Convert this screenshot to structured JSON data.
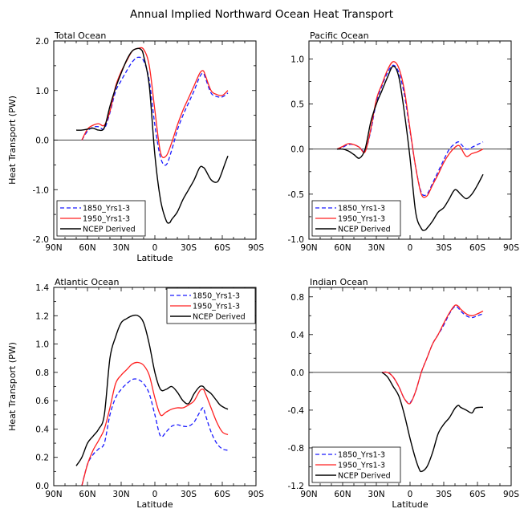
{
  "figure_title": "Annual Implied Northward Ocean Heat Transport",
  "colors": {
    "s1850": "#1a1aff",
    "s1950": "#ff2020",
    "ncep": "#000000"
  },
  "chart_data": [
    {
      "type": "line",
      "title": "Total Ocean",
      "xlabel": "Latitude",
      "ylabel": "Heat Transport (PW)",
      "xlim": [
        90,
        -90
      ],
      "ylim": [
        -2.0,
        2.0
      ],
      "xticks": [
        90,
        60,
        30,
        0,
        -30,
        -60,
        -90
      ],
      "xtick_labels": [
        "90N",
        "60N",
        "30N",
        "0",
        "30S",
        "60S",
        "90S"
      ],
      "yticks": [
        -2.0,
        -1.0,
        0.0,
        1.0,
        2.0
      ],
      "ytick_labels": [
        "-2.0",
        "-1.0",
        "0.0",
        "1.0",
        "2.0"
      ],
      "zero_line": true,
      "legend_position": "bottom-left",
      "series": [
        {
          "name": "1850_Yrs1-3",
          "key": "s1850",
          "x": [
            65,
            60,
            55,
            50,
            45,
            40,
            35,
            30,
            25,
            20,
            15,
            10,
            5,
            0,
            -5,
            -10,
            -15,
            -20,
            -25,
            -30,
            -35,
            -40,
            -43,
            -45,
            -50,
            -55,
            -60,
            -65
          ],
          "y": [
            0.0,
            0.18,
            0.26,
            0.27,
            0.23,
            0.55,
            0.98,
            1.2,
            1.4,
            1.58,
            1.67,
            1.6,
            1.2,
            0.3,
            -0.35,
            -0.5,
            -0.2,
            0.2,
            0.5,
            0.75,
            1.0,
            1.28,
            1.35,
            1.25,
            0.95,
            0.88,
            0.87,
            0.95
          ]
        },
        {
          "name": "1950_Yrs1-3",
          "key": "s1950",
          "x": [
            65,
            60,
            55,
            50,
            45,
            40,
            35,
            30,
            25,
            20,
            15,
            10,
            5,
            0,
            -5,
            -10,
            -15,
            -20,
            -25,
            -30,
            -35,
            -40,
            -43,
            -45,
            -50,
            -55,
            -60,
            -65
          ],
          "y": [
            0.0,
            0.22,
            0.3,
            0.33,
            0.3,
            0.58,
            1.08,
            1.38,
            1.6,
            1.8,
            1.85,
            1.83,
            1.5,
            0.6,
            -0.25,
            -0.32,
            -0.05,
            0.3,
            0.6,
            0.85,
            1.1,
            1.35,
            1.4,
            1.3,
            1.0,
            0.92,
            0.9,
            1.0
          ]
        },
        {
          "name": "NCEP Derived",
          "key": "ncep",
          "x": [
            70,
            65,
            60,
            55,
            50,
            45,
            40,
            35,
            30,
            25,
            20,
            15,
            12,
            10,
            5,
            0,
            -5,
            -10,
            -13,
            -15,
            -20,
            -25,
            -30,
            -35,
            -40,
            -43,
            -45,
            -50,
            -55,
            -58,
            -62,
            -65
          ],
          "y": [
            0.2,
            0.2,
            0.22,
            0.24,
            0.2,
            0.25,
            0.68,
            1.05,
            1.35,
            1.62,
            1.8,
            1.85,
            1.82,
            1.7,
            1.1,
            -0.3,
            -1.2,
            -1.62,
            -1.67,
            -1.6,
            -1.45,
            -1.2,
            -1.0,
            -0.8,
            -0.55,
            -0.55,
            -0.6,
            -0.8,
            -0.85,
            -0.75,
            -0.5,
            -0.32
          ]
        }
      ]
    },
    {
      "type": "line",
      "title": "Pacific Ocean",
      "xlabel": "",
      "ylabel": "",
      "xlim": [
        90,
        -90
      ],
      "ylim": [
        -1.0,
        1.2
      ],
      "xticks": [
        90,
        60,
        30,
        0,
        -30,
        -60,
        -90
      ],
      "xtick_labels": [
        "90N",
        "60N",
        "30N",
        "0",
        "30S",
        "60S",
        "90S"
      ],
      "yticks": [
        -1.0,
        -0.5,
        0.0,
        0.5,
        1.0
      ],
      "ytick_labels": [
        "-1.0",
        "-0.5",
        "0.0",
        "0.5",
        "1.0"
      ],
      "zero_line": true,
      "legend_position": "bottom-left",
      "series": [
        {
          "name": "1850_Yrs1-3",
          "key": "s1850",
          "x": [
            65,
            60,
            55,
            50,
            45,
            40,
            35,
            30,
            25,
            20,
            15,
            10,
            5,
            0,
            -5,
            -10,
            -15,
            -20,
            -25,
            -30,
            -35,
            -40,
            -43,
            -45,
            -50,
            -55,
            -60,
            -65
          ],
          "y": [
            0.0,
            0.02,
            0.05,
            0.05,
            0.02,
            -0.02,
            0.2,
            0.52,
            0.7,
            0.85,
            0.93,
            0.85,
            0.6,
            0.2,
            -0.2,
            -0.48,
            -0.5,
            -0.38,
            -0.25,
            -0.12,
            0.0,
            0.06,
            0.08,
            0.06,
            0.0,
            0.02,
            0.05,
            0.08
          ]
        },
        {
          "name": "1950_Yrs1-3",
          "key": "s1950",
          "x": [
            65,
            60,
            55,
            50,
            45,
            40,
            35,
            30,
            25,
            20,
            15,
            10,
            5,
            0,
            -5,
            -10,
            -15,
            -20,
            -25,
            -30,
            -35,
            -40,
            -43,
            -45,
            -50,
            -55,
            -60,
            -65
          ],
          "y": [
            0.0,
            0.03,
            0.06,
            0.05,
            0.02,
            -0.03,
            0.22,
            0.55,
            0.72,
            0.88,
            0.97,
            0.9,
            0.65,
            0.22,
            -0.2,
            -0.5,
            -0.52,
            -0.4,
            -0.28,
            -0.15,
            -0.05,
            0.02,
            0.04,
            0.02,
            -0.08,
            -0.05,
            -0.03,
            0.0
          ]
        },
        {
          "name": "NCEP Derived",
          "key": "ncep",
          "x": [
            65,
            60,
            55,
            50,
            45,
            40,
            35,
            30,
            25,
            20,
            15,
            10,
            5,
            0,
            -5,
            -10,
            -13,
            -15,
            -20,
            -25,
            -30,
            -35,
            -40,
            -45,
            -50,
            -55,
            -60,
            -65
          ],
          "y": [
            0.0,
            0.0,
            -0.02,
            -0.06,
            -0.1,
            0.0,
            0.3,
            0.5,
            0.65,
            0.8,
            0.92,
            0.8,
            0.4,
            -0.1,
            -0.7,
            -0.88,
            -0.9,
            -0.88,
            -0.8,
            -0.7,
            -0.65,
            -0.55,
            -0.45,
            -0.5,
            -0.55,
            -0.5,
            -0.4,
            -0.28
          ]
        }
      ]
    },
    {
      "type": "line",
      "title": "Atlantic Ocean",
      "xlabel": "Latitude",
      "ylabel": "Heat Transport (PW)",
      "xlim": [
        90,
        -90
      ],
      "ylim": [
        0.0,
        1.4
      ],
      "xticks": [
        90,
        60,
        30,
        0,
        -30,
        -60,
        -90
      ],
      "xtick_labels": [
        "90N",
        "60N",
        "30N",
        "0",
        "30S",
        "60S",
        "90S"
      ],
      "yticks": [
        0.0,
        0.2,
        0.4,
        0.6,
        0.8,
        1.0,
        1.2,
        1.4
      ],
      "ytick_labels": [
        "0.0",
        "0.2",
        "0.4",
        "0.6",
        "0.8",
        "1.0",
        "1.2",
        "1.4"
      ],
      "zero_line": false,
      "legend_position": "top-right",
      "series": [
        {
          "name": "1850_Yrs1-3",
          "key": "s1850",
          "x": [
            65,
            60,
            55,
            50,
            45,
            40,
            35,
            30,
            25,
            20,
            15,
            10,
            5,
            0,
            -5,
            -10,
            -15,
            -20,
            -25,
            -30,
            -35,
            -40,
            -43,
            -45,
            -50,
            -55,
            -60,
            -65
          ],
          "y": [
            0.0,
            0.15,
            0.22,
            0.26,
            0.3,
            0.5,
            0.62,
            0.68,
            0.72,
            0.75,
            0.75,
            0.72,
            0.65,
            0.5,
            0.35,
            0.38,
            0.42,
            0.43,
            0.42,
            0.42,
            0.45,
            0.52,
            0.55,
            0.5,
            0.38,
            0.3,
            0.26,
            0.25
          ]
        },
        {
          "name": "1950_Yrs1-3",
          "key": "s1950",
          "x": [
            65,
            60,
            55,
            50,
            45,
            40,
            35,
            30,
            25,
            20,
            15,
            10,
            5,
            0,
            -5,
            -10,
            -15,
            -20,
            -25,
            -30,
            -35,
            -40,
            -43,
            -45,
            -50,
            -55,
            -60,
            -65
          ],
          "y": [
            0.0,
            0.15,
            0.25,
            0.32,
            0.4,
            0.55,
            0.72,
            0.78,
            0.82,
            0.86,
            0.87,
            0.85,
            0.78,
            0.62,
            0.5,
            0.52,
            0.54,
            0.55,
            0.55,
            0.57,
            0.6,
            0.67,
            0.68,
            0.65,
            0.55,
            0.45,
            0.38,
            0.36
          ]
        },
        {
          "name": "NCEP Derived",
          "key": "ncep",
          "x": [
            70,
            65,
            60,
            55,
            50,
            45,
            40,
            35,
            30,
            25,
            20,
            15,
            10,
            5,
            0,
            -5,
            -10,
            -15,
            -20,
            -25,
            -30,
            -35,
            -40,
            -43,
            -45,
            -50,
            -55,
            -58,
            -62,
            -65
          ],
          "y": [
            0.14,
            0.2,
            0.3,
            0.35,
            0.4,
            0.5,
            0.9,
            1.05,
            1.15,
            1.18,
            1.2,
            1.2,
            1.15,
            1.0,
            0.8,
            0.68,
            0.68,
            0.7,
            0.66,
            0.6,
            0.58,
            0.65,
            0.7,
            0.7,
            0.68,
            0.65,
            0.6,
            0.57,
            0.55,
            0.54
          ]
        }
      ]
    },
    {
      "type": "line",
      "title": "Indian Ocean",
      "xlabel": "Latitude",
      "ylabel": "",
      "xlim": [
        90,
        -90
      ],
      "ylim": [
        -1.2,
        0.9
      ],
      "xticks": [
        90,
        60,
        30,
        0,
        -30,
        -60,
        -90
      ],
      "xtick_labels": [
        "90N",
        "60N",
        "30N",
        "0",
        "30S",
        "60S",
        "90S"
      ],
      "yticks": [
        -1.2,
        -0.8,
        -0.4,
        0.0,
        0.4,
        0.8
      ],
      "ytick_labels": [
        "-1.2",
        "-0.8",
        "-0.4",
        "0.0",
        "0.4",
        "0.8"
      ],
      "zero_line": true,
      "legend_position": "bottom-left",
      "series": [
        {
          "name": "1850_Yrs1-3",
          "key": "s1850",
          "x": [
            25,
            20,
            15,
            10,
            5,
            0,
            -5,
            -10,
            -15,
            -20,
            -25,
            -30,
            -35,
            -40,
            -43,
            -45,
            -50,
            -55,
            -60,
            -65
          ],
          "y": [
            0.0,
            0.0,
            -0.05,
            -0.15,
            -0.28,
            -0.32,
            -0.2,
            0.0,
            0.15,
            0.3,
            0.4,
            0.5,
            0.62,
            0.7,
            0.68,
            0.65,
            0.6,
            0.58,
            0.6,
            0.62
          ]
        },
        {
          "name": "1950_Yrs1-3",
          "key": "s1950",
          "x": [
            25,
            20,
            15,
            10,
            5,
            0,
            -5,
            -10,
            -15,
            -20,
            -25,
            -30,
            -35,
            -40,
            -43,
            -45,
            -50,
            -55,
            -60,
            -65
          ],
          "y": [
            0.0,
            0.0,
            -0.05,
            -0.15,
            -0.28,
            -0.33,
            -0.2,
            0.0,
            0.15,
            0.3,
            0.4,
            0.52,
            0.63,
            0.71,
            0.7,
            0.67,
            0.62,
            0.6,
            0.62,
            0.65
          ]
        },
        {
          "name": "NCEP Derived",
          "key": "ncep",
          "x": [
            25,
            20,
            15,
            10,
            5,
            0,
            -5,
            -8,
            -10,
            -15,
            -20,
            -25,
            -30,
            -35,
            -40,
            -43,
            -45,
            -50,
            -55,
            -58,
            -62,
            -65
          ],
          "y": [
            0.0,
            -0.05,
            -0.15,
            -0.25,
            -0.45,
            -0.7,
            -0.92,
            -1.02,
            -1.05,
            -1.0,
            -0.85,
            -0.65,
            -0.55,
            -0.48,
            -0.38,
            -0.35,
            -0.37,
            -0.4,
            -0.43,
            -0.38,
            -0.37,
            -0.37
          ]
        }
      ]
    }
  ]
}
